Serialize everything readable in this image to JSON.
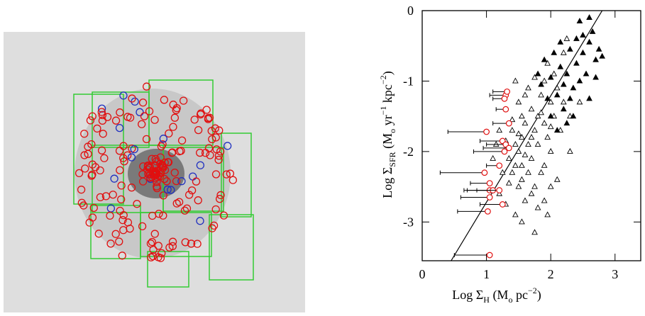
{
  "chart_data": {
    "type": "scatter",
    "x_label": [
      "Log Σ",
      "H",
      " (M",
      "o",
      " pc",
      "−2",
      ")"
    ],
    "y_label": [
      "Log Σ",
      "SFR",
      " (M",
      "o",
      " yr",
      "−1",
      " kpc",
      "−2",
      ")"
    ],
    "xlim": [
      0,
      3.4
    ],
    "ylim": [
      -3.55,
      0
    ],
    "xticks": [
      0,
      1,
      2,
      3
    ],
    "yticks": [
      -3,
      -2,
      -1,
      0
    ],
    "fit_line": {
      "x": [
        0.45,
        2.8
      ],
      "y": [
        -3.55,
        0
      ],
      "color": "#000000"
    },
    "series": [
      {
        "marker": "open-triangle",
        "color": "#000000",
        "x": [
          1.45,
          1.5,
          1.55,
          1.6,
          1.4,
          1.45,
          1.5,
          1.55,
          1.6,
          1.65,
          1.7,
          1.7,
          1.75,
          1.8,
          1.8,
          1.85,
          1.85,
          1.9,
          1.9,
          1.95,
          2.0,
          2.0,
          2.05,
          2.1,
          2.1,
          2.15,
          2.2,
          2.2,
          2.25,
          2.3,
          1.3,
          1.35,
          1.4,
          1.45,
          1.5,
          1.55,
          1.6,
          1.65,
          1.7,
          1.75,
          1.8,
          1.9,
          1.95,
          2.0,
          1.2,
          1.25,
          1.2,
          1.15,
          1.1,
          1.3,
          1.55,
          1.75,
          1.45,
          1.6,
          1.65,
          1.75,
          1.95,
          2.05,
          1.4,
          1.5,
          2.3,
          2.45,
          1.9,
          1.85,
          1.55,
          1.35,
          2.0,
          1.7
        ],
        "y": [
          -1.0,
          -1.3,
          -1.5,
          -1.2,
          -1.7,
          -1.9,
          -2.0,
          -1.8,
          -1.6,
          -1.9,
          -1.4,
          -2.1,
          -1.7,
          -1.5,
          -1.9,
          -1.2,
          -2.3,
          -1.6,
          -1.0,
          -1.8,
          -1.3,
          -2.0,
          -1.5,
          -1.1,
          -2.4,
          -1.7,
          -0.6,
          -1.3,
          -0.4,
          -1.5,
          -1.85,
          -2.1,
          -2.3,
          -2.2,
          -2.5,
          -2.4,
          -2.7,
          -2.3,
          -2.6,
          -2.5,
          -2.8,
          -2.7,
          -2.9,
          -2.5,
          -2.6,
          -2.3,
          -1.7,
          -1.9,
          -2.1,
          -2.75,
          -3.0,
          -3.15,
          -2.9,
          -2.05,
          -1.1,
          -0.95,
          -0.75,
          -0.9,
          -1.55,
          -1.75,
          -2.0,
          -1.3,
          -2.2,
          -1.45,
          -2.2,
          -2.45,
          -1.65,
          -1.8
        ]
      },
      {
        "marker": "filled-triangle",
        "color": "#000000",
        "x": [
          1.9,
          2.0,
          2.05,
          2.1,
          2.15,
          2.2,
          2.25,
          2.3,
          2.35,
          2.4,
          2.4,
          2.45,
          2.5,
          2.5,
          2.55,
          2.6,
          2.6,
          2.65,
          2.7,
          2.75,
          2.8,
          2.0,
          2.1,
          2.25,
          1.95,
          1.85,
          2.35,
          2.15,
          1.8,
          2.45,
          2.6,
          2.3,
          2.7,
          2.2
        ],
        "y": [
          -0.7,
          -0.95,
          -0.6,
          -1.2,
          -0.8,
          -1.4,
          -0.9,
          -0.55,
          -1.1,
          -0.4,
          -0.75,
          -1.0,
          -0.35,
          -0.6,
          -0.9,
          -0.45,
          -1.25,
          -0.3,
          -0.7,
          -0.55,
          -0.65,
          -1.5,
          -1.7,
          -1.6,
          -1.25,
          -1.05,
          -1.5,
          -0.45,
          -0.9,
          -0.15,
          -0.1,
          -1.25,
          -0.95,
          -1.05
        ]
      },
      {
        "marker": "open-circle",
        "color": "#e01010",
        "x": [
          1.3,
          1.28,
          1.32,
          1.3,
          1.35,
          1.0,
          1.25,
          1.3,
          1.35,
          1.28,
          1.2,
          0.97,
          1.05,
          1.05,
          1.1,
          1.2,
          1.05,
          1.25,
          1.02,
          1.05
        ],
        "y": [
          -1.2,
          -1.25,
          -1.15,
          -1.4,
          -1.6,
          -1.72,
          -1.85,
          -1.9,
          -1.95,
          -2.0,
          -2.2,
          -2.3,
          -2.45,
          -2.55,
          -2.55,
          -2.55,
          -2.65,
          -2.75,
          -2.85,
          -3.47
        ],
        "xmin": [
          1.05,
          1.1,
          1.1,
          1.15,
          1.1,
          0.4,
          0.9,
          1.0,
          0.95,
          0.8,
          1.0,
          0.28,
          0.75,
          0.7,
          0.65,
          0.85,
          0.6,
          0.9,
          0.55,
          0.5
        ]
      }
    ]
  }
}
